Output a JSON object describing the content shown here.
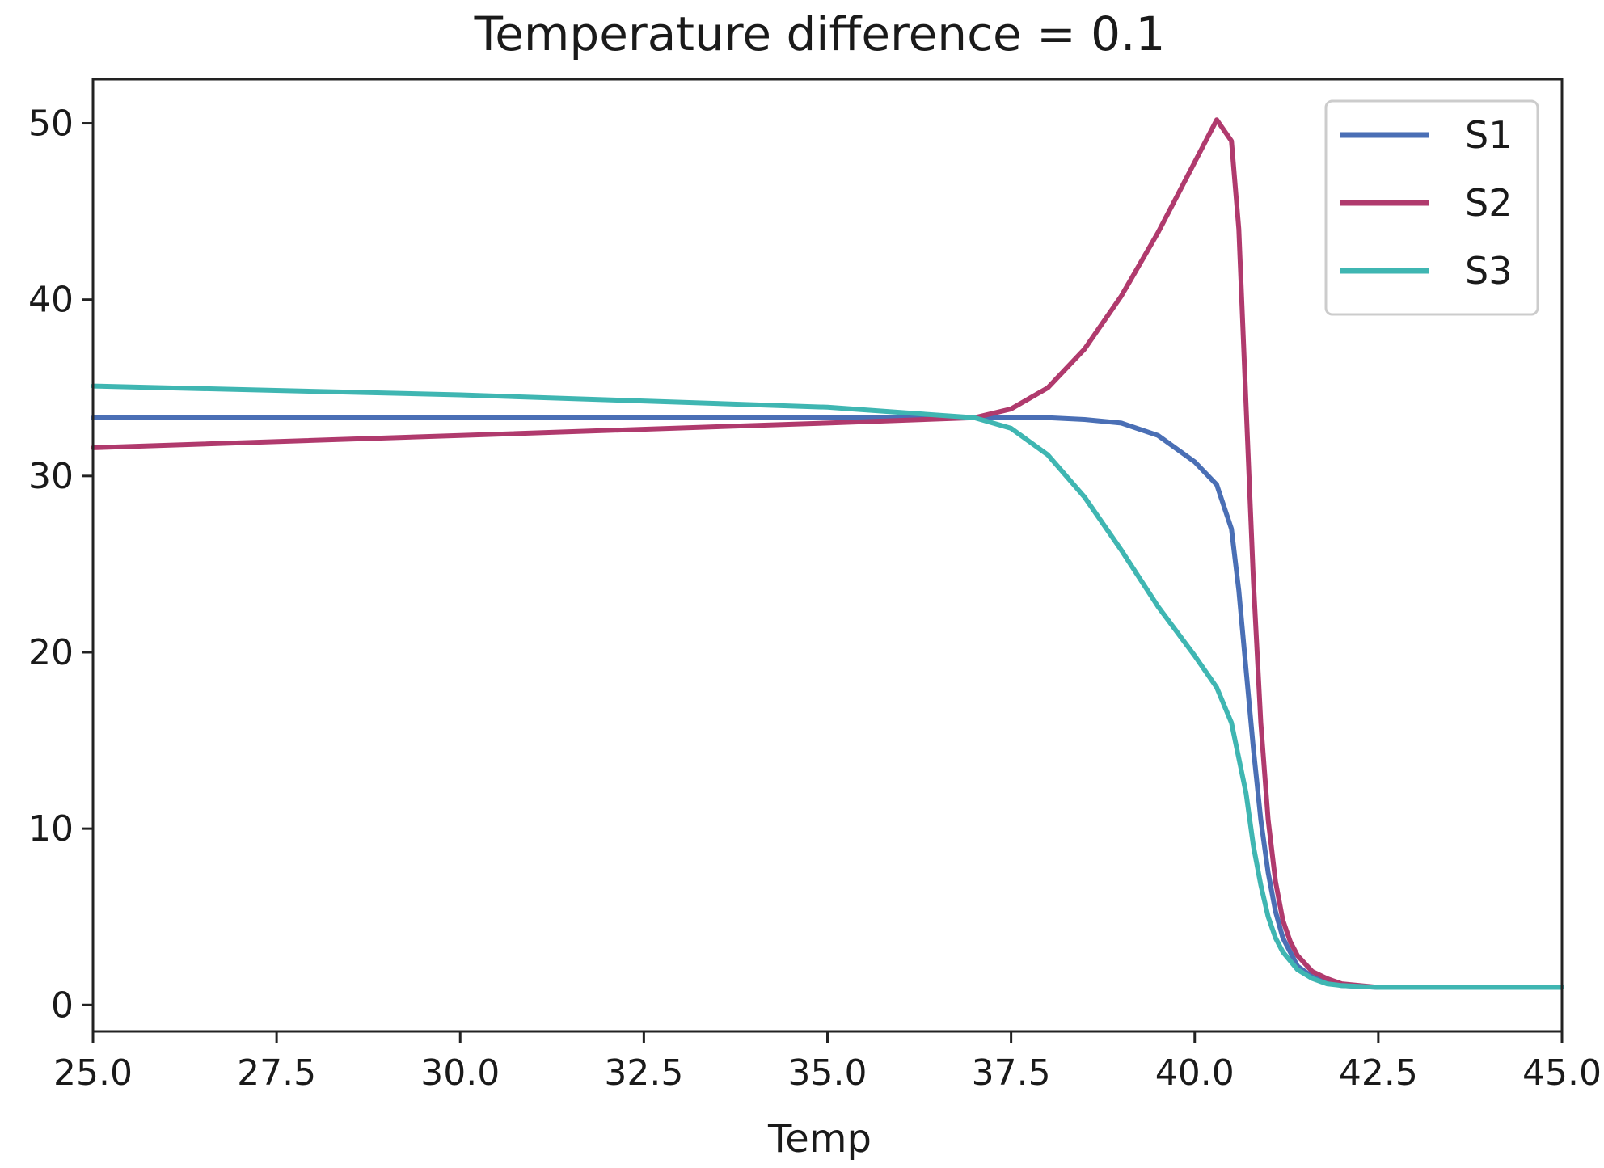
{
  "chart_data": {
    "type": "line",
    "title": "Temperature difference = 0.1",
    "xlabel": "Temp",
    "ylabel": "",
    "xlim": [
      25.0,
      45.0
    ],
    "ylim": [
      -1.5,
      52.5
    ],
    "xticks": [
      25.0,
      27.5,
      30.0,
      32.5,
      35.0,
      37.5,
      40.0,
      42.5,
      45.0
    ],
    "xtick_labels": [
      "25.0",
      "27.5",
      "30.0",
      "32.5",
      "35.0",
      "37.5",
      "40.0",
      "42.5",
      "45.0"
    ],
    "yticks": [
      0,
      10,
      20,
      30,
      40,
      50
    ],
    "ytick_labels": [
      "0",
      "10",
      "20",
      "30",
      "40",
      "50"
    ],
    "grid": false,
    "legend_position": "top-right",
    "series": [
      {
        "name": "S1",
        "color": "#4a6fb5",
        "x": [
          25.0,
          30.0,
          35.0,
          37.0,
          38.0,
          38.5,
          39.0,
          39.5,
          40.0,
          40.3,
          40.5,
          40.6,
          40.7,
          40.8,
          40.9,
          41.0,
          41.1,
          41.2,
          41.4,
          41.6,
          41.8,
          42.0,
          42.5,
          45.0
        ],
        "y": [
          33.3,
          33.3,
          33.3,
          33.3,
          33.3,
          33.2,
          33.0,
          32.3,
          30.8,
          29.5,
          27.0,
          23.5,
          19.0,
          14.5,
          10.5,
          7.5,
          5.3,
          3.8,
          2.2,
          1.6,
          1.3,
          1.1,
          1.0,
          1.0
        ]
      },
      {
        "name": "S2",
        "color": "#b03a6d",
        "x": [
          25.0,
          30.0,
          35.0,
          37.0,
          37.5,
          38.0,
          38.5,
          39.0,
          39.5,
          40.0,
          40.3,
          40.5,
          40.6,
          40.7,
          40.8,
          40.9,
          41.0,
          41.1,
          41.2,
          41.3,
          41.4,
          41.6,
          41.8,
          42.0,
          42.5,
          45.0
        ],
        "y": [
          31.6,
          32.3,
          33.0,
          33.3,
          33.8,
          35.0,
          37.2,
          40.2,
          43.8,
          47.8,
          50.2,
          49.0,
          44.0,
          34.0,
          24.0,
          16.0,
          10.5,
          7.0,
          4.8,
          3.6,
          2.8,
          1.9,
          1.5,
          1.2,
          1.0,
          1.0
        ]
      },
      {
        "name": "S3",
        "color": "#3fb6b2",
        "x": [
          25.0,
          30.0,
          35.0,
          37.0,
          37.5,
          38.0,
          38.5,
          39.0,
          39.5,
          40.0,
          40.3,
          40.5,
          40.7,
          40.8,
          40.9,
          41.0,
          41.1,
          41.2,
          41.4,
          41.6,
          41.8,
          42.0,
          42.5,
          45.0
        ],
        "y": [
          35.1,
          34.6,
          33.9,
          33.3,
          32.7,
          31.2,
          28.8,
          25.8,
          22.6,
          19.8,
          18.0,
          16.0,
          12.0,
          9.0,
          6.8,
          5.0,
          3.8,
          3.0,
          2.0,
          1.5,
          1.2,
          1.1,
          1.0,
          1.0
        ]
      }
    ]
  }
}
